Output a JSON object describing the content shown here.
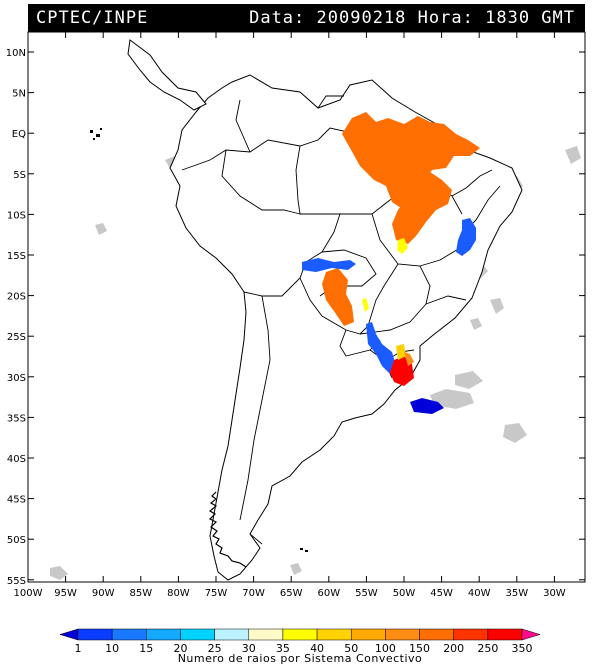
{
  "header": {
    "source": "CPTEC/INPE",
    "date_label": "Data:",
    "date": "20090218",
    "time_label": "Hora:",
    "time": "1830 GMT"
  },
  "map": {
    "lat_labels": [
      "10N",
      "5N",
      "EQ",
      "5S",
      "10S",
      "15S",
      "20S",
      "25S",
      "30S",
      "35S",
      "40S",
      "45S",
      "50S",
      "55S"
    ],
    "lon_labels": [
      "100W",
      "95W",
      "90W",
      "85W",
      "80W",
      "75W",
      "70W",
      "65W",
      "60W",
      "55W",
      "50W",
      "45W",
      "40W",
      "35W",
      "30W"
    ],
    "land_color": "#ffffff",
    "border_color": "#000000",
    "cloud_color": "#c8c8c8"
  },
  "colorbar": {
    "title": "Numero de raios por Sistema Convectivo",
    "ticks": [
      "1",
      "10",
      "15",
      "20",
      "25",
      "30",
      "35",
      "40",
      "50",
      "100",
      "150",
      "200",
      "250",
      "350"
    ],
    "colors": [
      "#0000d8",
      "#0a3cff",
      "#1a78ff",
      "#14a8ff",
      "#00d2ff",
      "#bcf2ff",
      "#fffac8",
      "#ffff00",
      "#ffd200",
      "#ffaa00",
      "#ff8c14",
      "#ff6e00",
      "#ff3200",
      "#ff0000",
      "#ff0a8c"
    ]
  },
  "systems": [
    {
      "name": "N Brazil (Para/Maranhao)",
      "color": "orange"
    },
    {
      "name": "Bahia / Goias",
      "color": "orange"
    },
    {
      "name": "Mato Grosso do Sul",
      "color": "orange"
    },
    {
      "name": "Rio Grande do Sul",
      "color": "red"
    },
    {
      "name": "Atlantic off Uruguay",
      "color": "blue"
    }
  ]
}
